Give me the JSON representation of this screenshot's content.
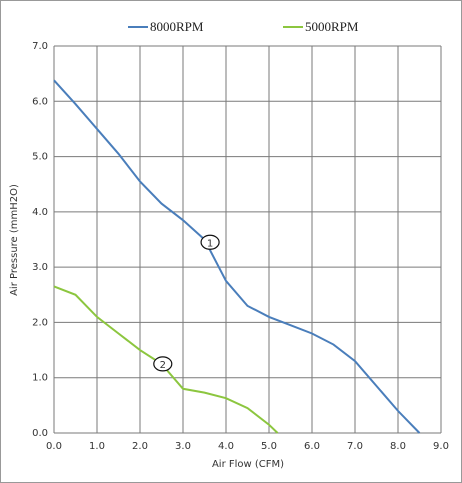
{
  "chart_data": {
    "type": "line",
    "xlabel": "Air Flow (CFM)",
    "ylabel": "Air Pressure (mmH2O)",
    "series": [
      {
        "name": "8000RPM",
        "color": "#4a7ebb",
        "x": [
          0,
          0.5,
          1,
          1.5,
          2,
          2.5,
          3,
          3.5,
          4,
          4.5,
          5,
          5.5,
          6,
          6.5,
          7,
          7.5,
          8,
          8.5
        ],
        "values": [
          6.38,
          5.95,
          5.5,
          5.05,
          4.55,
          4.15,
          3.85,
          3.5,
          2.75,
          2.3,
          2.1,
          1.95,
          1.8,
          1.6,
          1.3,
          0.85,
          0.4,
          0
        ]
      },
      {
        "name": "5000RPM",
        "color": "#8cc63f",
        "x": [
          0,
          0.5,
          1,
          1.5,
          2,
          2.5,
          3,
          3.5,
          4,
          4.5,
          5,
          5.2
        ],
        "values": [
          2.65,
          2.5,
          2.1,
          1.8,
          1.5,
          1.25,
          0.8,
          0.73,
          0.63,
          0.45,
          0.15,
          0
        ]
      }
    ],
    "annotations": [
      {
        "text": "1",
        "x": 3.63,
        "y": 3.45
      },
      {
        "text": "2",
        "x": 2.53,
        "y": 1.25
      }
    ],
    "xlim": [
      0,
      9
    ],
    "xticks": [
      {
        "value": 0,
        "label": "0.0"
      },
      {
        "value": 1,
        "label": "1.0"
      },
      {
        "value": 2,
        "label": "2.0"
      },
      {
        "value": 3,
        "label": "3.0"
      },
      {
        "value": 4,
        "label": "4.0"
      },
      {
        "value": 5,
        "label": "5.0"
      },
      {
        "value": 6,
        "label": "6.0"
      },
      {
        "value": 7,
        "label": "7.0"
      },
      {
        "value": 8,
        "label": "8.0"
      },
      {
        "value": 9,
        "label": "9.0"
      }
    ],
    "ylim": [
      0,
      7
    ],
    "yticks": [
      {
        "value": 0,
        "label": "0.0"
      },
      {
        "value": 1,
        "label": "1.0"
      },
      {
        "value": 2,
        "label": "2.0"
      },
      {
        "value": 3,
        "label": "3.0"
      },
      {
        "value": 4,
        "label": "4.0"
      },
      {
        "value": 5,
        "label": "5.0"
      },
      {
        "value": 6,
        "label": "6.0"
      },
      {
        "value": 7,
        "label": "7.0"
      }
    ],
    "grid": true,
    "legend": "top"
  }
}
